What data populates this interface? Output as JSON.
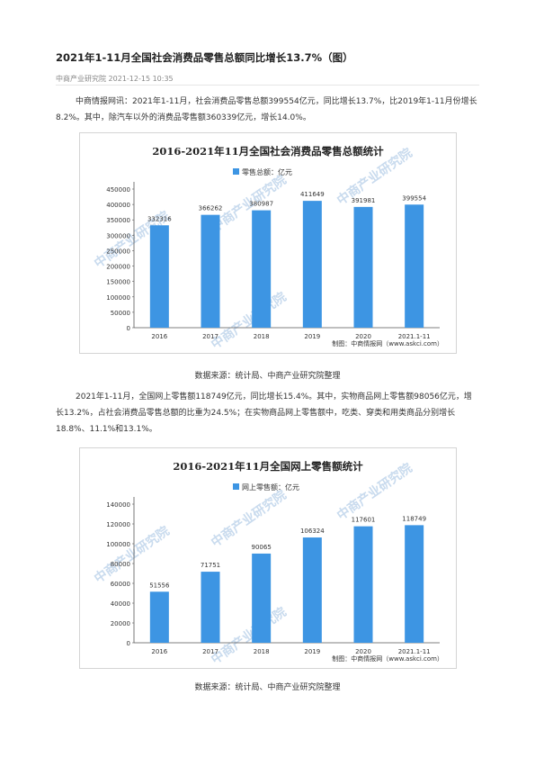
{
  "article": {
    "title": "2021年1-11月全国社会消费品零售总额同比增长13.7%（图）",
    "source": "中商产业研究院",
    "date": "2021-12-15 10:35",
    "paragraph1": "中商情报网讯：2021年1-11月，社会消费品零售总额399554亿元，同比增长13.7%，比2019年1-11月份增长8.2%。其中，除汽车以外的消费品零售额360339亿元，增长14.0%。",
    "caption1": "数据来源：统计局、中商产业研究院整理",
    "paragraph2": "2021年1-11月，全国网上零售额118749亿元，同比增长15.4%。其中，实物商品网上零售额98056亿元，增长13.2%，占社会消费品零售总额的比重为24.5%；在实物商品网上零售额中，吃类、穿类和用类商品分别增长18.8%、11.1%和13.1%。",
    "caption2": "数据来源：统计局、中商产业研究院整理"
  },
  "colors": {
    "bar": "#3d95e3",
    "axis": "#555555",
    "grid": "#e6e6e6",
    "watermark": "#c9dbee"
  },
  "watermark_text": "中商产业研究院",
  "chart_data": [
    {
      "type": "bar",
      "title": "2016-2021年11月全国社会消费品零售总额统计",
      "categories": [
        "2016",
        "2017",
        "2018",
        "2019",
        "2020",
        "2021.1-11"
      ],
      "series": [
        {
          "name": "零售总额：亿元",
          "values": [
            332316,
            366262,
            380987,
            411649,
            391981,
            399554
          ]
        }
      ],
      "ylim": [
        0,
        450000
      ],
      "yticks": [
        "0",
        "50000",
        "100000",
        "150000",
        "200000",
        "250000",
        "300000",
        "350000",
        "400000",
        "450000"
      ],
      "credit": "制图：中商情报网（www.askci.com）",
      "legend": "top-center",
      "grid": false
    },
    {
      "type": "bar",
      "title": "2016-2021年11月全国网上零售额统计",
      "categories": [
        "2016",
        "2017",
        "2018",
        "2019",
        "2020",
        "2021.1-11"
      ],
      "series": [
        {
          "name": "网上零售额：亿元",
          "values": [
            51556,
            71751,
            90065,
            106324,
            117601,
            118749
          ]
        }
      ],
      "ylim": [
        0,
        140000
      ],
      "yticks": [
        "0",
        "20000",
        "40000",
        "60000",
        "80000",
        "100000",
        "120000",
        "140000"
      ],
      "credit": "制图：中商情报网（www.askci.com）",
      "legend": "top-center",
      "grid": false
    }
  ]
}
